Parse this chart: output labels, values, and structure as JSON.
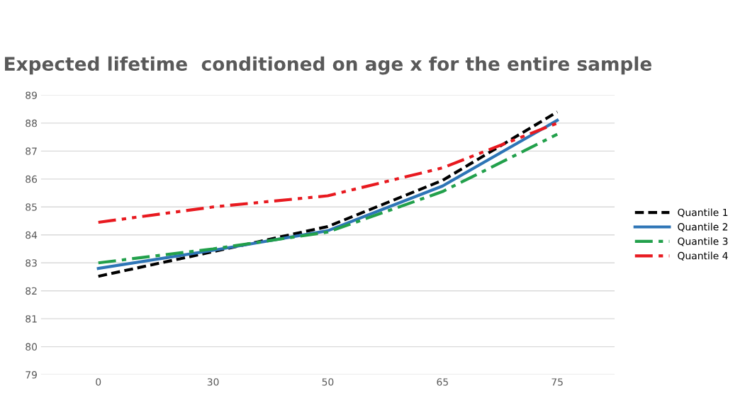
{
  "chart_data": {
    "type": "line",
    "title": "Expected lifetime  conditioned on age x for the entire sample",
    "categories": [
      "0",
      "30",
      "50",
      "65",
      "75"
    ],
    "series": [
      {
        "name": "Quantile 1",
        "color": "#000000",
        "line_style": "dashed",
        "values": [
          82.52,
          83.4,
          84.3,
          85.95,
          88.4
        ]
      },
      {
        "name": "Quantile 2",
        "color": "#2e75b6",
        "line_style": "solid",
        "values": [
          82.8,
          83.45,
          84.15,
          85.75,
          88.1
        ]
      },
      {
        "name": "Quantile 3",
        "color": "#22a04b",
        "line_style": "dashdot",
        "values": [
          83.0,
          83.5,
          84.1,
          85.55,
          87.6
        ]
      },
      {
        "name": "Quantile 4",
        "color": "#e8191f",
        "line_style": "dashdotdot",
        "values": [
          84.45,
          85.0,
          85.4,
          86.4,
          88.0
        ]
      }
    ],
    "ylim": [
      79,
      89
    ],
    "yticks": [
      79,
      80,
      81,
      82,
      83,
      84,
      85,
      86,
      87,
      88,
      89
    ],
    "grid": "y",
    "legend": "right"
  }
}
